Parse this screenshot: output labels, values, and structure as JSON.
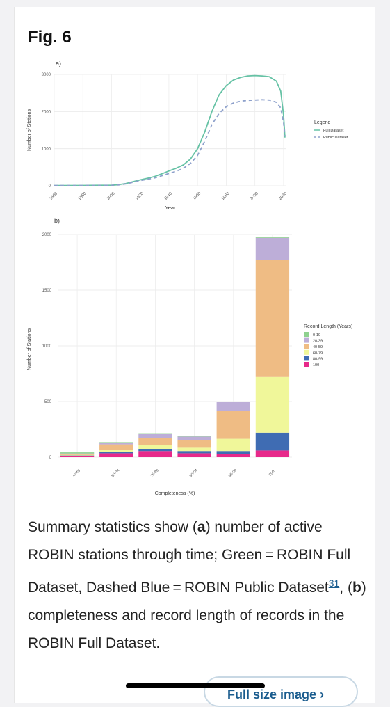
{
  "figure": {
    "title": "Fig. 6",
    "caption": {
      "p1": "Summary statistics show (",
      "b1": "a",
      "p2": ") number of active ROBIN stations through time; Green = ROBIN Full Dataset, Dashed Blue = ROBIN Public Dataset",
      "ref": "31",
      "p3": ", (",
      "b2": "b",
      "p4": ") completeness and record length of records in the ROBIN Full Dataset."
    },
    "full_size_button": "Full size image ›"
  },
  "chart_data": [
    {
      "type": "line",
      "panel_label": "a)",
      "xlabel": "Year",
      "ylabel": "Number of Stations",
      "xlim": [
        1860,
        2022
      ],
      "ylim": [
        0,
        3000
      ],
      "x_ticks": [
        1860,
        1880,
        1900,
        1920,
        1940,
        1960,
        1980,
        2000,
        2020
      ],
      "y_ticks": [
        0,
        1000,
        2000,
        3000
      ],
      "legend_title": "Legend",
      "legend_position": "right",
      "grid": true,
      "series": [
        {
          "name": "Full Dataset",
          "color": "#66c2a5",
          "style": "solid",
          "x": [
            1860,
            1880,
            1900,
            1905,
            1910,
            1915,
            1920,
            1925,
            1930,
            1935,
            1940,
            1945,
            1950,
            1955,
            1960,
            1965,
            1970,
            1975,
            1980,
            1985,
            1990,
            1995,
            2000,
            2005,
            2010,
            2015,
            2018,
            2020,
            2021
          ],
          "values": [
            5,
            10,
            15,
            30,
            60,
            110,
            160,
            200,
            250,
            320,
            400,
            470,
            560,
            720,
            1000,
            1450,
            2000,
            2450,
            2700,
            2850,
            2920,
            2960,
            2970,
            2960,
            2940,
            2820,
            2550,
            1900,
            1300
          ]
        },
        {
          "name": "Public Dataset",
          "color": "#8da0cb",
          "style": "dashed",
          "x": [
            1860,
            1880,
            1900,
            1905,
            1910,
            1915,
            1920,
            1925,
            1930,
            1935,
            1940,
            1945,
            1950,
            1955,
            1960,
            1965,
            1970,
            1975,
            1980,
            1985,
            1990,
            1995,
            2000,
            2005,
            2010,
            2015,
            2018,
            2020,
            2021
          ],
          "values": [
            5,
            8,
            12,
            25,
            50,
            95,
            140,
            175,
            210,
            270,
            330,
            390,
            470,
            600,
            820,
            1200,
            1650,
            1950,
            2130,
            2230,
            2280,
            2300,
            2310,
            2320,
            2310,
            2250,
            2100,
            1700,
            1350
          ]
        }
      ]
    },
    {
      "type": "bar",
      "stacked": true,
      "panel_label": "b)",
      "xlabel": "Completeness (%)",
      "ylabel": "Number of Stations",
      "ylim": [
        0,
        2000
      ],
      "y_ticks": [
        0,
        500,
        1000,
        1500,
        2000
      ],
      "categories": [
        "<=49",
        "50-74",
        "75-89",
        "90-94",
        "95-99",
        "100"
      ],
      "legend_title": "Record Length (Years)",
      "legend_position": "right",
      "grid": true,
      "series": [
        {
          "name": "100+",
          "color": "#e7298a",
          "values": [
            10,
            35,
            55,
            35,
            25,
            60
          ]
        },
        {
          "name": "80-99",
          "color": "#3f6cb3",
          "values": [
            5,
            15,
            20,
            20,
            30,
            160
          ]
        },
        {
          "name": "60-79",
          "color": "#f0f79a",
          "values": [
            5,
            15,
            35,
            30,
            110,
            500
          ]
        },
        {
          "name": "40-59",
          "color": "#efbc84",
          "values": [
            8,
            50,
            60,
            70,
            250,
            1050
          ]
        },
        {
          "name": "20-39",
          "color": "#bdaed8",
          "values": [
            5,
            15,
            40,
            30,
            80,
            200
          ]
        },
        {
          "name": "0-19",
          "color": "#8fd18f",
          "values": [
            10,
            5,
            5,
            5,
            5,
            5
          ]
        }
      ]
    }
  ]
}
